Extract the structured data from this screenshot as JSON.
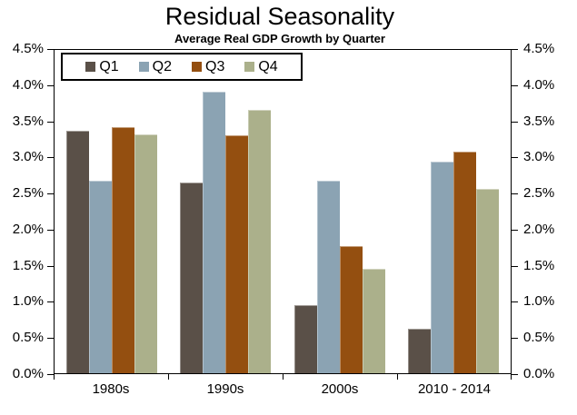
{
  "header": {
    "title": "Residual Seasonality",
    "subtitle": "Average Real GDP Growth by Quarter"
  },
  "chart_data": {
    "type": "bar",
    "title": "Residual Seasonality",
    "subtitle": "Average Real GDP Growth by Quarter",
    "categories": [
      "1980s",
      "1990s",
      "2000s",
      "2010 - 2014"
    ],
    "series": [
      {
        "name": "Q1",
        "color": "#5a5048",
        "values": [
          3.38,
          2.65,
          0.95,
          0.62
        ]
      },
      {
        "name": "Q2",
        "color": "#8ba3b3",
        "values": [
          2.68,
          3.92,
          2.68,
          2.95
        ]
      },
      {
        "name": "Q3",
        "color": "#944f10",
        "values": [
          3.43,
          3.31,
          1.77,
          3.09
        ]
      },
      {
        "name": "Q4",
        "color": "#abb08b",
        "values": [
          3.33,
          3.66,
          1.46,
          2.57
        ]
      }
    ],
    "xlabel": "",
    "ylabel": "",
    "ylim": [
      0,
      4.5
    ],
    "yticks": [
      {
        "value": 4.5,
        "label": "4.5%"
      },
      {
        "value": 4.0,
        "label": "4.0%"
      },
      {
        "value": 3.5,
        "label": "3.5%"
      },
      {
        "value": 3.0,
        "label": "3.0%"
      },
      {
        "value": 2.5,
        "label": "2.5%"
      },
      {
        "value": 2.0,
        "label": "2.0%"
      },
      {
        "value": 1.5,
        "label": "1.5%"
      },
      {
        "value": 1.0,
        "label": "1.0%"
      },
      {
        "value": 0.5,
        "label": "0.5%"
      },
      {
        "value": 0.0,
        "label": "0.0%"
      }
    ],
    "grid": false,
    "legend": {
      "position": "top-left-inside",
      "labels": [
        "Q1",
        "Q2",
        "Q3",
        "Q4"
      ]
    },
    "axes": {
      "left": true,
      "right": true,
      "mirrored": true
    }
  }
}
